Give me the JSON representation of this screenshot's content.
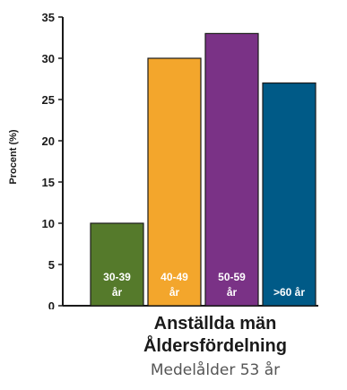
{
  "chart_data": {
    "type": "bar",
    "categories": [
      "30-39 år",
      "40-49 år",
      "50-59 år",
      ">60 år"
    ],
    "bar_labels": [
      [
        "30-39",
        "år"
      ],
      [
        "40-49",
        "år"
      ],
      [
        "50-59",
        "år"
      ],
      [
        ">60 år"
      ]
    ],
    "values": [
      10,
      30,
      33,
      27
    ],
    "colors": [
      "#557a2b",
      "#f3a62c",
      "#7a3286",
      "#005a87"
    ],
    "ylabel": "Procent (%)",
    "xlabel": "",
    "ylim": [
      0,
      35
    ],
    "yticks": [
      0,
      5,
      10,
      15,
      20,
      25,
      30,
      35
    ],
    "grid": false
  },
  "caption": {
    "title_line1": "Anställda män",
    "title_line2": "Åldersfördelning",
    "subtitle": "Medelålder 53 år"
  }
}
